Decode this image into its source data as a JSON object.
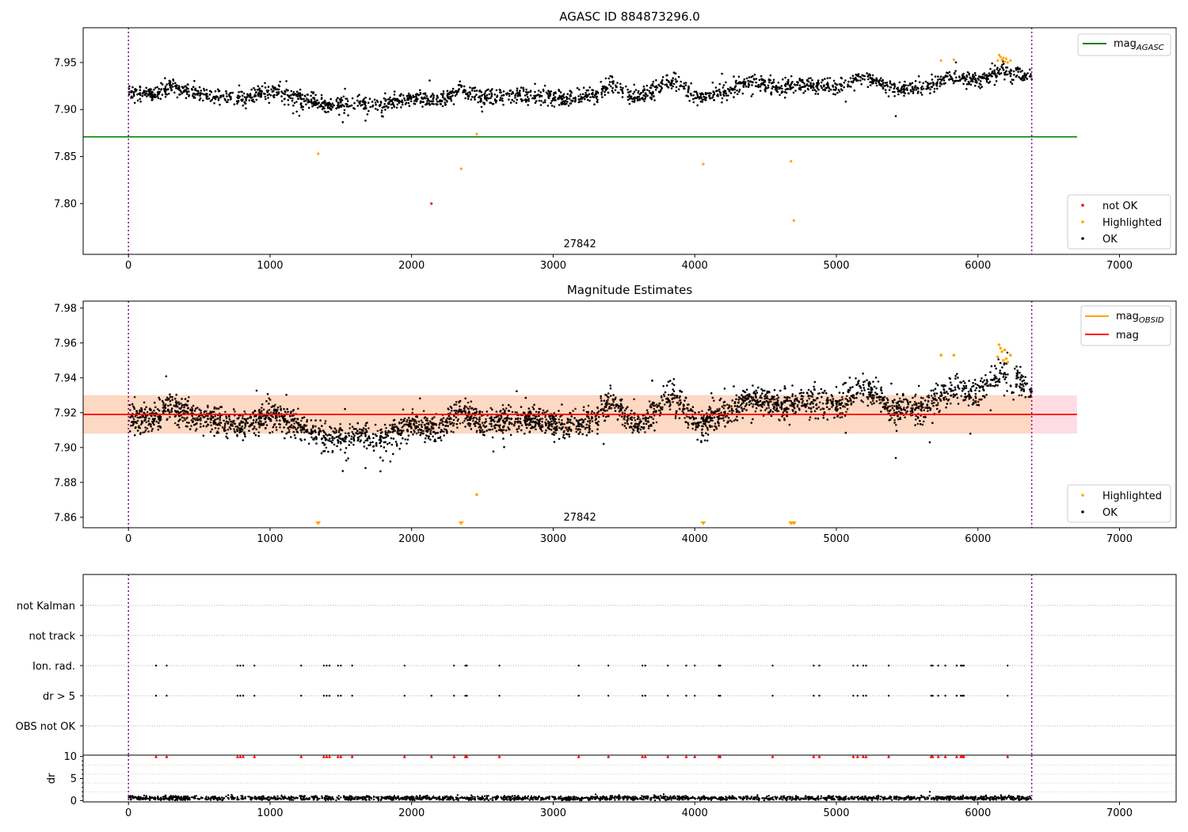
{
  "chart_data": [
    {
      "type": "scatter",
      "title": "AGASC ID 884873296.0",
      "xlim": [
        -320,
        7400
      ],
      "ylim": [
        7.746,
        7.987
      ],
      "xticks": [
        0,
        1000,
        2000,
        3000,
        4000,
        5000,
        6000,
        7000
      ],
      "yticks": [
        7.8,
        7.85,
        7.9,
        7.95
      ],
      "grid": false,
      "vlines": [
        0,
        6380
      ],
      "hline": {
        "label": "mag_AGASC",
        "base": "mag",
        "sub": "AGASC",
        "y": 7.871,
        "x_range": [
          -320,
          6700
        ],
        "color": "#008000"
      },
      "annotation": {
        "text": "27842",
        "x": 3000
      },
      "legend_top": {
        "position": "top-right",
        "entries": [
          {
            "label": "mag_AGASC",
            "base": "mag",
            "sub": "AGASC",
            "color": "#008000"
          }
        ]
      },
      "legend_bottom": {
        "position": "bottom-right",
        "entries": [
          {
            "label": "not OK",
            "color": "#ff0000"
          },
          {
            "label": "Highlighted",
            "color": "#ffa500"
          },
          {
            "label": "OK",
            "color": "#000000"
          }
        ]
      },
      "trend": {
        "x": [
          0,
          200,
          300,
          400,
          600,
          800,
          1000,
          1200,
          1400,
          1600,
          1800,
          2000,
          2200,
          2350,
          2500,
          2700,
          2900,
          3100,
          3300,
          3400,
          3500,
          3600,
          3700,
          3800,
          3900,
          4000,
          4200,
          4400,
          4600,
          4800,
          5000,
          5200,
          5400,
          5600,
          5800,
          6000,
          6150,
          6250,
          6380
        ],
        "y": [
          7.918,
          7.916,
          7.925,
          7.92,
          7.915,
          7.912,
          7.92,
          7.912,
          7.904,
          7.906,
          7.905,
          7.912,
          7.91,
          7.922,
          7.912,
          7.916,
          7.915,
          7.911,
          7.916,
          7.928,
          7.918,
          7.912,
          7.92,
          7.93,
          7.926,
          7.914,
          7.918,
          7.93,
          7.924,
          7.928,
          7.924,
          7.936,
          7.922,
          7.922,
          7.935,
          7.93,
          7.942,
          7.938,
          7.934
        ],
        "scatter": 0.009,
        "n": 2200
      },
      "series": [
        {
          "name": "not OK",
          "color": "#ff0000",
          "x": [
            2140
          ],
          "y": [
            7.8
          ]
        },
        {
          "name": "Highlighted",
          "color": "#ffa500",
          "x": [
            1340,
            2350,
            2460,
            4060,
            4680,
            4700,
            5740,
            5830,
            6140,
            6150,
            6160,
            6170,
            6180,
            6190,
            6200,
            6210,
            6230
          ],
          "y": [
            7.853,
            7.837,
            7.874,
            7.842,
            7.845,
            7.782,
            7.952,
            7.953,
            7.952,
            7.958,
            7.956,
            7.953,
            7.955,
            7.951,
            7.954,
            7.95,
            7.952
          ]
        }
      ]
    },
    {
      "type": "scatter",
      "title": "Magnitude Estimates",
      "xlim": [
        -320,
        7400
      ],
      "ylim": [
        7.854,
        7.984
      ],
      "xticks": [
        0,
        1000,
        2000,
        3000,
        4000,
        5000,
        6000,
        7000
      ],
      "yticks": [
        7.86,
        7.88,
        7.9,
        7.92,
        7.94,
        7.96,
        7.98
      ],
      "grid": false,
      "vlines": [
        0,
        6380
      ],
      "band": {
        "y": [
          7.908,
          7.93
        ],
        "x_range": [
          -320,
          6700
        ],
        "colors": [
          "#ffdce3",
          "#fdd8c2"
        ],
        "split_x": 6380
      },
      "mag_line": {
        "label": "mag",
        "y": 7.919,
        "x_range": [
          -320,
          6700
        ],
        "color": "#ff0000"
      },
      "annotation": {
        "text": "27842",
        "x": 3000
      },
      "legend_top": {
        "position": "top-right",
        "entries": [
          {
            "label": "mag_OBSID",
            "base": "mag",
            "sub": "OBSID",
            "color": "#ffa500"
          },
          {
            "label": "mag",
            "color": "#ff0000"
          }
        ]
      },
      "legend_bottom": {
        "position": "bottom-right",
        "entries": [
          {
            "label": "Highlighted",
            "color": "#ffa500"
          },
          {
            "label": "OK",
            "color": "#000000"
          }
        ]
      },
      "series": [
        {
          "name": "Highlighted",
          "color": "#ffa500",
          "x": [
            2460,
            5740,
            5830,
            6140,
            6150,
            6160,
            6170,
            6180,
            6190,
            6200,
            6210,
            6230
          ],
          "y": [
            7.873,
            7.953,
            7.953,
            7.952,
            7.959,
            7.957,
            7.955,
            7.95,
            7.956,
            7.951,
            7.949,
            7.953
          ]
        },
        {
          "name": "Highlighted (off-scale)",
          "color": "#ffa500",
          "marker": "down-triangle",
          "x": [
            1340,
            2350,
            4060,
            4680,
            4700
          ],
          "y": [
            7.855,
            7.855,
            7.855,
            7.855,
            7.855
          ]
        }
      ]
    },
    {
      "type": "table",
      "title": "",
      "xlim": [
        -320,
        7400
      ],
      "categories": [
        "not Kalman",
        "not track",
        "Ion. rad.",
        "dr > 5",
        "OBS not OK"
      ],
      "vlines": [
        0,
        6380
      ],
      "flag_points": {
        "Ion. rad.": [
          195,
          270,
          770,
          790,
          810,
          890,
          1220,
          1380,
          1400,
          1420,
          1480,
          1500,
          1580,
          1950,
          2300,
          2380,
          2390,
          2620,
          3180,
          3390,
          3630,
          3650,
          3810,
          3940,
          4000,
          4170,
          4180,
          4550,
          4840,
          4880,
          5120,
          5150,
          5190,
          5210,
          5370,
          5670,
          5680,
          5720,
          5770,
          5850,
          5880,
          5890,
          5900,
          6210
        ],
        "dr > 5": [
          195,
          270,
          770,
          790,
          810,
          890,
          1220,
          1380,
          1400,
          1420,
          1480,
          1500,
          1580,
          1950,
          2140,
          2300,
          2380,
          2390,
          2620,
          3180,
          3390,
          3630,
          3650,
          3810,
          3940,
          4000,
          4170,
          4180,
          4550,
          4840,
          4880,
          5120,
          5150,
          5190,
          5210,
          5370,
          5670,
          5680,
          5720,
          5770,
          5850,
          5880,
          5890,
          5900,
          6210
        ]
      }
    },
    {
      "type": "scatter",
      "title": "",
      "ylabel": "dr",
      "xlim": [
        -320,
        7400
      ],
      "ylim": [
        -0.3,
        10.3
      ],
      "xticks": [
        0,
        1000,
        2000,
        3000,
        4000,
        5000,
        6000,
        7000
      ],
      "yticks": [
        0,
        5,
        10
      ],
      "vlines": [
        0,
        6380
      ],
      "series": [
        {
          "name": "dr",
          "color": "#000000",
          "x_range": [
            0,
            6380
          ],
          "mean": 0.55,
          "n": 2000
        },
        {
          "name": "dr > 5",
          "color": "#ff0000",
          "marker": "up-triangle",
          "value": 10,
          "x": [
            195,
            270,
            770,
            790,
            810,
            890,
            1220,
            1380,
            1400,
            1420,
            1480,
            1500,
            1580,
            1950,
            2140,
            2300,
            2380,
            2390,
            2620,
            3180,
            3390,
            3630,
            3650,
            3810,
            3940,
            4000,
            4170,
            4180,
            4550,
            4840,
            4880,
            5120,
            5150,
            5190,
            5210,
            5370,
            5670,
            5680,
            5720,
            5770,
            5850,
            5880,
            5890,
            5900,
            6210
          ]
        }
      ]
    }
  ]
}
